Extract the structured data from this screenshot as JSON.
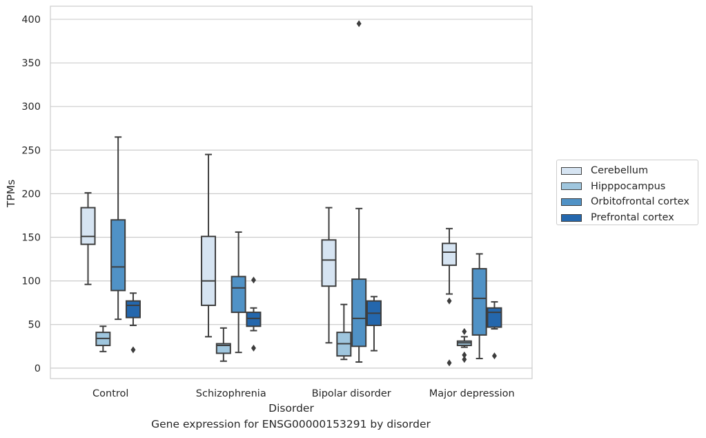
{
  "caption": "Gene expression for ENSG00000153291 by disorder",
  "chart_data": {
    "type": "box",
    "xlabel": "Disorder",
    "ylabel": "TPMs",
    "ylim": [
      -12,
      415
    ],
    "yticks": [
      0,
      50,
      100,
      150,
      200,
      250,
      300,
      350,
      400
    ],
    "grid": "horizontal",
    "legend_position": "outside-right",
    "categories": [
      "Control",
      "Schizophrenia",
      "Bipolar disorder",
      "Major depression"
    ],
    "series": [
      {
        "name": "Cerebellum",
        "color": "#d6e4f2",
        "boxes": [
          {
            "whisker_low": 96,
            "q1": 142,
            "median": 151,
            "q3": 184,
            "whisker_high": 201,
            "outliers": []
          },
          {
            "whisker_low": 36,
            "q1": 72,
            "median": 100,
            "q3": 151,
            "whisker_high": 245,
            "outliers": []
          },
          {
            "whisker_low": 29,
            "q1": 94,
            "median": 124,
            "q3": 147,
            "whisker_high": 184,
            "outliers": []
          },
          {
            "whisker_low": 85,
            "q1": 118,
            "median": 133,
            "q3": 143,
            "whisker_high": 160,
            "outliers": [
              6,
              77
            ]
          }
        ]
      },
      {
        "name": "Hipppocampus",
        "color": "#9fc6de",
        "boxes": [
          {
            "whisker_low": 19,
            "q1": 26,
            "median": 34,
            "q3": 41,
            "whisker_high": 48,
            "outliers": []
          },
          {
            "whisker_low": 8,
            "q1": 17,
            "median": 26,
            "q3": 28,
            "whisker_high": 46,
            "outliers": []
          },
          {
            "whisker_low": 10,
            "q1": 14,
            "median": 28,
            "q3": 41,
            "whisker_high": 73,
            "outliers": []
          },
          {
            "whisker_low": 24,
            "q1": 26,
            "median": 29,
            "q3": 31,
            "whisker_high": 36,
            "outliers": [
              10,
              15,
              42
            ]
          }
        ]
      },
      {
        "name": "Orbitofrontal cortex",
        "color": "#5092c6",
        "boxes": [
          {
            "whisker_low": 56,
            "q1": 89,
            "median": 116,
            "q3": 170,
            "whisker_high": 265,
            "outliers": []
          },
          {
            "whisker_low": 18,
            "q1": 64,
            "median": 92,
            "q3": 105,
            "whisker_high": 156,
            "outliers": []
          },
          {
            "whisker_low": 7,
            "q1": 25,
            "median": 57,
            "q3": 102,
            "whisker_high": 183,
            "outliers": [
              395
            ]
          },
          {
            "whisker_low": 11,
            "q1": 38,
            "median": 80,
            "q3": 114,
            "whisker_high": 131,
            "outliers": []
          }
        ]
      },
      {
        "name": "Prefrontal cortex",
        "color": "#2467ad",
        "boxes": [
          {
            "whisker_low": 49,
            "q1": 58,
            "median": 72,
            "q3": 77,
            "whisker_high": 86,
            "outliers": [
              21
            ]
          },
          {
            "whisker_low": 43,
            "q1": 48,
            "median": 57,
            "q3": 64,
            "whisker_high": 69,
            "outliers": [
              23,
              101
            ]
          },
          {
            "whisker_low": 20,
            "q1": 49,
            "median": 63,
            "q3": 77,
            "whisker_high": 82,
            "outliers": []
          },
          {
            "whisker_low": 45,
            "q1": 47,
            "median": 64,
            "q3": 69,
            "whisker_high": 76,
            "outliers": [
              14
            ]
          }
        ]
      }
    ]
  }
}
